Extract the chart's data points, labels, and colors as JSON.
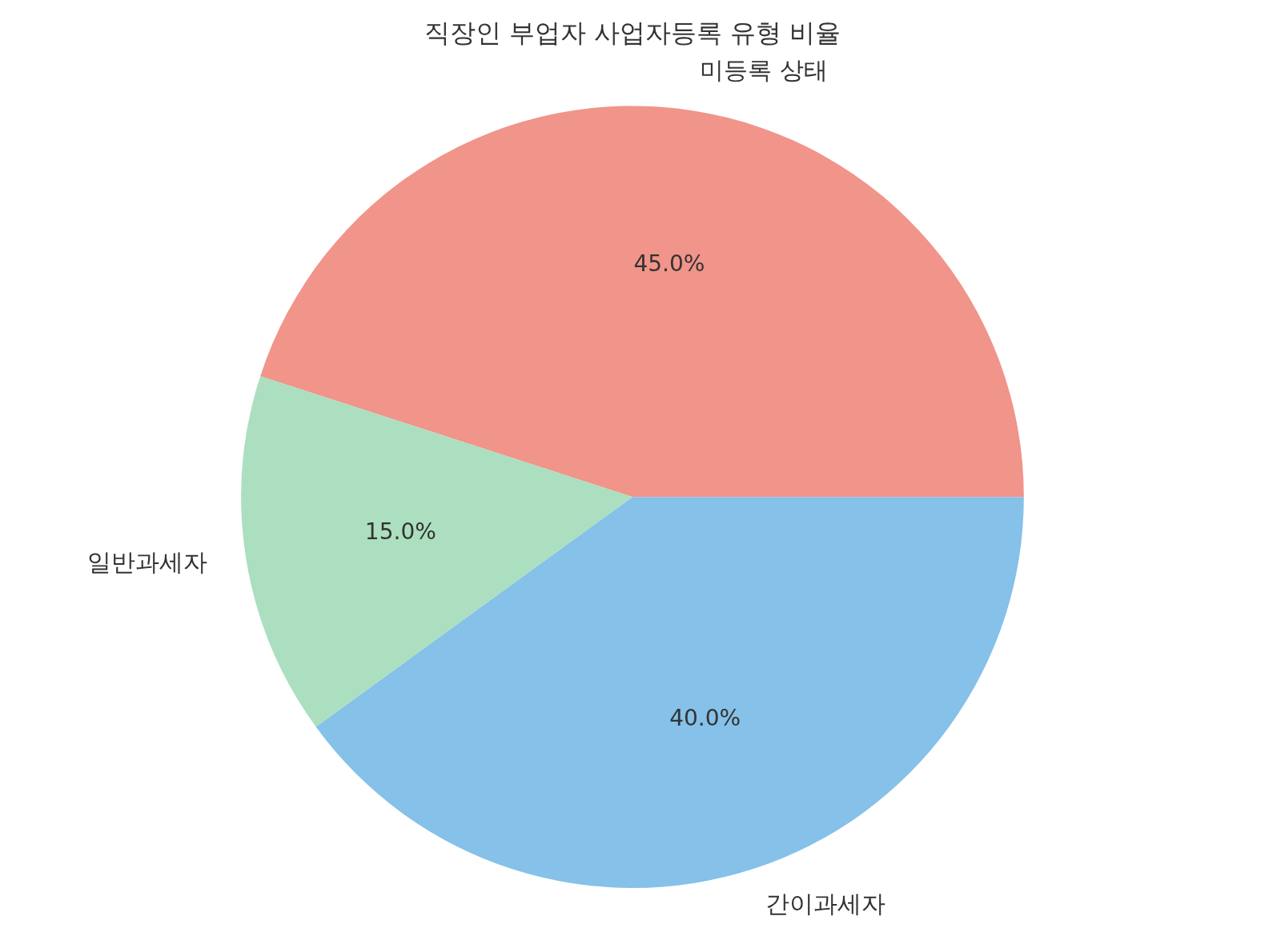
{
  "chart_data": {
    "type": "pie",
    "title": "직장인 부업자 사업자등록 유형 비율",
    "categories": [
      "미등록 상태",
      "간이과세자",
      "일반과세자"
    ],
    "values": [
      45,
      40,
      15
    ],
    "colors": [
      "#f1948a",
      "#85c1e9",
      "#abdfbf"
    ],
    "value_labels": [
      "45.0%",
      "40.0%",
      "15.0%"
    ]
  }
}
